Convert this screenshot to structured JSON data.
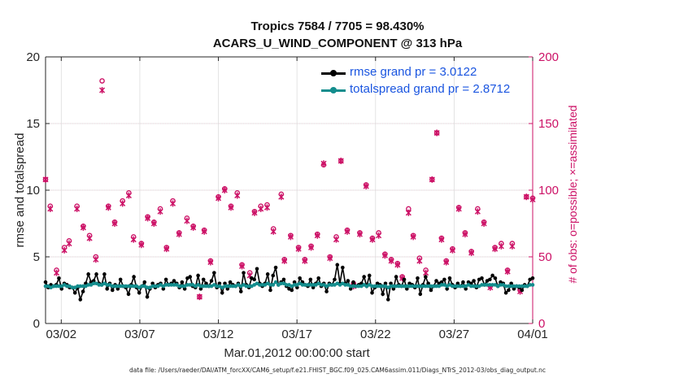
{
  "figure": {
    "title_line1": "Tropics 7584 / 7705 = 98.430%",
    "title_line2": "ACARS_U_WIND_COMPONENT @ 313 hPa",
    "start_label": "Mar.01,2012 00:00:00 start",
    "file_label": "data file: /Users/raeder/DAI/ATM_forcXX/CAM6_setup/f.e21.FHIST_BGC.f09_025.CAM6assim.011/Diags_NTrS_2012-03/obs_diag_output.nc"
  },
  "colors": {
    "rmse": "#000000",
    "spread": "#138d8d",
    "obs": "#cc1166",
    "legend_text": "#1a55e0",
    "grid": "#dddddd",
    "grid_right": "#f4c6d6"
  },
  "chart_data": {
    "type": "line",
    "title": "Tropics 7584 / 7705 = 98.430%",
    "subtitle": "ACARS_U_WIND_COMPONENT @ 313 hPa",
    "xlabel": "Mar.01,2012 00:00:00 start",
    "ylabel": "rmse and totalspread",
    "ylabel_right": "# of obs: o=possible; ×=assimilated",
    "xlim": [
      0,
      31
    ],
    "ylim": [
      0,
      20
    ],
    "ylim_right": [
      0,
      200
    ],
    "x_ticks": [
      1,
      6,
      11,
      16,
      21,
      26,
      31
    ],
    "x_tick_labels": [
      "03/02",
      "03/07",
      "03/12",
      "03/17",
      "03/22",
      "03/27",
      "04/01"
    ],
    "y_ticks": [
      0,
      5,
      10,
      15,
      20
    ],
    "y_tick_labels": [
      "0",
      "5",
      "10",
      "15",
      "20"
    ],
    "y_ticks_right": [
      0,
      50,
      100,
      150,
      200
    ],
    "y_tick_labels_right": [
      "0",
      "50",
      "100",
      "150",
      "200"
    ],
    "grid": true,
    "legend_position": "top-right",
    "series": [
      {
        "name": "rmse grand pr = 3.0122",
        "axis": "left",
        "marker": "dot",
        "values": [
          3.1,
          2.7,
          2.9,
          2.8,
          2.9,
          3.4,
          2.6,
          3.0,
          2.9,
          2.7,
          2.7,
          2.3,
          2.7,
          1.8,
          2.4,
          3.0,
          3.7,
          3.1,
          3.2,
          3.7,
          3.0,
          2.9,
          3.7,
          2.6,
          3.0,
          2.5,
          2.9,
          2.6,
          3.3,
          2.8,
          2.7,
          2.2,
          2.9,
          3.5,
          2.7,
          2.3,
          2.8,
          3.1,
          2.0,
          2.6,
          3.0,
          2.7,
          2.9,
          3.0,
          2.6,
          3.3,
          2.9,
          3.0,
          3.2,
          3.0,
          2.7,
          3.1,
          2.6,
          3.4,
          3.5,
          2.8,
          2.7,
          3.6,
          2.6,
          3.3,
          3.0,
          2.8,
          3.2,
          3.8,
          2.7,
          3.0,
          2.3,
          3.0,
          2.6,
          3.1,
          2.9,
          2.8,
          3.0,
          2.4,
          3.8,
          2.9,
          2.7,
          3.4,
          3.3,
          4.1,
          3.0,
          2.8,
          3.0,
          3.7,
          2.5,
          3.6,
          4.2,
          2.9,
          3.1,
          3.3,
          2.8,
          2.6,
          2.5,
          3.1,
          2.7,
          3.4,
          3.1,
          2.9,
          2.8,
          3.3,
          2.7,
          3.0,
          3.4,
          2.8,
          3.0,
          2.4,
          3.0,
          2.9,
          3.3,
          4.4,
          3.0,
          4.2,
          3.0,
          3.2,
          2.6,
          3.1,
          2.8,
          2.9,
          3.0,
          3.5,
          2.8,
          3.6,
          2.3,
          2.7,
          3.0,
          2.9,
          2.2,
          3.0,
          1.8,
          3.0,
          2.6,
          3.5,
          2.9,
          2.8,
          3.3,
          2.6,
          3.0,
          2.9,
          2.7,
          3.4,
          2.2,
          2.9,
          3.5,
          3.0,
          2.5,
          2.8,
          3.2,
          3.0,
          3.1,
          3.3,
          2.6,
          3.4,
          2.9,
          2.7,
          3.0,
          2.8,
          3.1,
          2.6,
          3.1,
          3.0,
          3.2,
          2.7,
          3.3,
          3.4,
          2.9,
          3.2,
          3.3,
          3.6,
          3.4,
          2.8,
          3.1,
          3.0,
          2.3,
          2.5,
          3.0,
          2.6,
          2.8,
          2.7,
          2.5,
          2.9,
          2.8,
          3.3,
          3.4
        ]
      },
      {
        "name": "totalspread grand pr = 2.8712",
        "axis": "left",
        "marker": "dot",
        "values": [
          2.8,
          2.8,
          2.7,
          2.8,
          2.8,
          2.8,
          2.8,
          2.9,
          2.8,
          2.8,
          2.7,
          2.7,
          2.8,
          2.8,
          2.8,
          2.8,
          2.9,
          2.9,
          3.0,
          3.0,
          2.9,
          2.9,
          3.0,
          2.9,
          2.9,
          2.8,
          2.8,
          2.8,
          2.8,
          2.8,
          2.8,
          2.8,
          2.8,
          2.8,
          2.8,
          2.7,
          2.8,
          2.8,
          2.7,
          2.7,
          2.8,
          2.8,
          2.8,
          2.9,
          2.8,
          2.9,
          2.9,
          2.9,
          2.9,
          2.9,
          2.8,
          2.8,
          2.8,
          2.9,
          2.9,
          2.9,
          2.8,
          2.9,
          2.8,
          2.8,
          2.8,
          2.8,
          2.8,
          2.9,
          2.8,
          2.8,
          2.7,
          2.8,
          2.8,
          2.8,
          2.8,
          2.8,
          2.9,
          2.8,
          2.9,
          2.8,
          2.8,
          2.8,
          2.9,
          3.0,
          2.9,
          2.9,
          2.9,
          3.0,
          2.9,
          2.9,
          3.1,
          2.9,
          3.0,
          3.0,
          2.9,
          2.9,
          2.8,
          2.9,
          2.9,
          3.0,
          2.9,
          2.9,
          2.9,
          2.9,
          2.9,
          2.9,
          3.0,
          2.9,
          2.9,
          2.8,
          2.9,
          2.9,
          2.9,
          3.0,
          2.9,
          3.0,
          2.9,
          2.9,
          2.8,
          2.8,
          2.8,
          2.8,
          2.8,
          2.9,
          2.8,
          2.9,
          2.8,
          2.8,
          2.8,
          2.8,
          2.8,
          2.8,
          2.7,
          2.8,
          2.8,
          2.8,
          2.8,
          2.8,
          2.8,
          2.8,
          2.8,
          2.8,
          2.8,
          2.8,
          2.8,
          2.8,
          2.8,
          2.8,
          2.8,
          2.8,
          2.8,
          2.8,
          2.9,
          2.9,
          2.8,
          2.9,
          2.8,
          2.8,
          2.8,
          2.8,
          2.8,
          2.8,
          2.9,
          2.8,
          2.8,
          2.8,
          2.8,
          2.9,
          2.9,
          2.9,
          2.9,
          2.9,
          2.9,
          2.8,
          2.9,
          2.9,
          2.8,
          2.8,
          2.8,
          2.8,
          2.8,
          2.8,
          2.8,
          2.8,
          2.8,
          2.9,
          2.9
        ]
      },
      {
        "name": "# of obs possible",
        "axis": "right",
        "marker": "circle",
        "points": [
          [
            0.0,
            108
          ],
          [
            0.3,
            88
          ],
          [
            0.7,
            40
          ],
          [
            1.2,
            57
          ],
          [
            1.5,
            62
          ],
          [
            2.0,
            88
          ],
          [
            2.4,
            73
          ],
          [
            2.8,
            66
          ],
          [
            3.2,
            50
          ],
          [
            3.6,
            182
          ],
          [
            4.0,
            88
          ],
          [
            4.4,
            76
          ],
          [
            4.9,
            92
          ],
          [
            5.3,
            98
          ],
          [
            5.6,
            65
          ],
          [
            6.1,
            60
          ],
          [
            6.5,
            80
          ],
          [
            6.9,
            76
          ],
          [
            7.3,
            86
          ],
          [
            7.7,
            57
          ],
          [
            8.1,
            92
          ],
          [
            8.5,
            68
          ],
          [
            9.0,
            79
          ],
          [
            9.4,
            73
          ],
          [
            9.8,
            20
          ],
          [
            10.1,
            70
          ],
          [
            10.5,
            47
          ],
          [
            11.0,
            95
          ],
          [
            11.4,
            101
          ],
          [
            11.8,
            88
          ],
          [
            12.2,
            98
          ],
          [
            12.5,
            44
          ],
          [
            13.0,
            38
          ],
          [
            13.3,
            84
          ],
          [
            13.7,
            88
          ],
          [
            14.1,
            89
          ],
          [
            14.5,
            71
          ],
          [
            15.0,
            97
          ],
          [
            15.2,
            48
          ],
          [
            15.6,
            66
          ],
          [
            16.1,
            57
          ],
          [
            16.5,
            48
          ],
          [
            16.9,
            58
          ],
          [
            17.3,
            67
          ],
          [
            17.7,
            119
          ],
          [
            18.1,
            50
          ],
          [
            18.5,
            65
          ],
          [
            18.8,
            122
          ],
          [
            19.2,
            70
          ],
          [
            19.6,
            30
          ],
          [
            20.0,
            68
          ],
          [
            20.4,
            104
          ],
          [
            20.8,
            64
          ],
          [
            21.2,
            68
          ],
          [
            21.6,
            52
          ],
          [
            22.0,
            48
          ],
          [
            22.4,
            45
          ],
          [
            22.7,
            35
          ],
          [
            23.1,
            86
          ],
          [
            23.4,
            66
          ],
          [
            23.8,
            49
          ],
          [
            24.2,
            40
          ],
          [
            24.6,
            108
          ],
          [
            24.9,
            143
          ],
          [
            25.2,
            64
          ],
          [
            25.5,
            47
          ],
          [
            25.9,
            56
          ],
          [
            26.3,
            87
          ],
          [
            26.7,
            68
          ],
          [
            27.1,
            54
          ],
          [
            27.5,
            86
          ],
          [
            27.9,
            76
          ],
          [
            28.3,
            28
          ],
          [
            28.6,
            57
          ],
          [
            29.0,
            60
          ],
          [
            29.4,
            40
          ],
          [
            29.7,
            60
          ],
          [
            30.2,
            25
          ],
          [
            30.6,
            95
          ],
          [
            31.0,
            94
          ]
        ]
      },
      {
        "name": "# of obs assimilated",
        "axis": "right",
        "marker": "star",
        "points": [
          [
            0.0,
            108
          ],
          [
            0.3,
            86
          ],
          [
            0.7,
            38
          ],
          [
            1.2,
            55
          ],
          [
            1.5,
            60
          ],
          [
            2.0,
            86
          ],
          [
            2.4,
            72
          ],
          [
            2.8,
            64
          ],
          [
            3.2,
            48
          ],
          [
            3.6,
            175
          ],
          [
            4.0,
            87
          ],
          [
            4.4,
            75
          ],
          [
            4.9,
            90
          ],
          [
            5.3,
            96
          ],
          [
            5.6,
            63
          ],
          [
            6.1,
            59
          ],
          [
            6.5,
            79
          ],
          [
            6.9,
            75
          ],
          [
            7.3,
            84
          ],
          [
            7.7,
            56
          ],
          [
            8.1,
            90
          ],
          [
            8.5,
            67
          ],
          [
            9.0,
            77
          ],
          [
            9.4,
            72
          ],
          [
            9.8,
            20
          ],
          [
            10.1,
            69
          ],
          [
            10.5,
            46
          ],
          [
            11.0,
            94
          ],
          [
            11.4,
            100
          ],
          [
            11.8,
            87
          ],
          [
            12.2,
            96
          ],
          [
            12.5,
            43
          ],
          [
            13.0,
            36
          ],
          [
            13.3,
            83
          ],
          [
            13.7,
            86
          ],
          [
            14.1,
            87
          ],
          [
            14.5,
            69
          ],
          [
            15.0,
            95
          ],
          [
            15.2,
            47
          ],
          [
            15.6,
            65
          ],
          [
            16.1,
            56
          ],
          [
            16.5,
            47
          ],
          [
            16.9,
            57
          ],
          [
            17.3,
            66
          ],
          [
            17.7,
            120
          ],
          [
            18.1,
            49
          ],
          [
            18.5,
            63
          ],
          [
            18.8,
            122
          ],
          [
            19.2,
            69
          ],
          [
            19.6,
            28
          ],
          [
            20.0,
            67
          ],
          [
            20.4,
            103
          ],
          [
            20.8,
            63
          ],
          [
            21.2,
            66
          ],
          [
            21.6,
            51
          ],
          [
            22.0,
            47
          ],
          [
            22.4,
            44
          ],
          [
            22.7,
            34
          ],
          [
            23.1,
            83
          ],
          [
            23.4,
            65
          ],
          [
            23.8,
            47
          ],
          [
            24.2,
            38
          ],
          [
            24.6,
            108
          ],
          [
            24.9,
            143
          ],
          [
            25.2,
            63
          ],
          [
            25.5,
            46
          ],
          [
            25.9,
            55
          ],
          [
            26.3,
            86
          ],
          [
            26.7,
            67
          ],
          [
            27.1,
            53
          ],
          [
            27.5,
            84
          ],
          [
            27.9,
            75
          ],
          [
            28.3,
            27
          ],
          [
            28.6,
            56
          ],
          [
            29.0,
            58
          ],
          [
            29.4,
            39
          ],
          [
            29.7,
            58
          ],
          [
            30.2,
            24
          ],
          [
            30.6,
            95
          ],
          [
            31.0,
            93
          ]
        ]
      }
    ]
  }
}
